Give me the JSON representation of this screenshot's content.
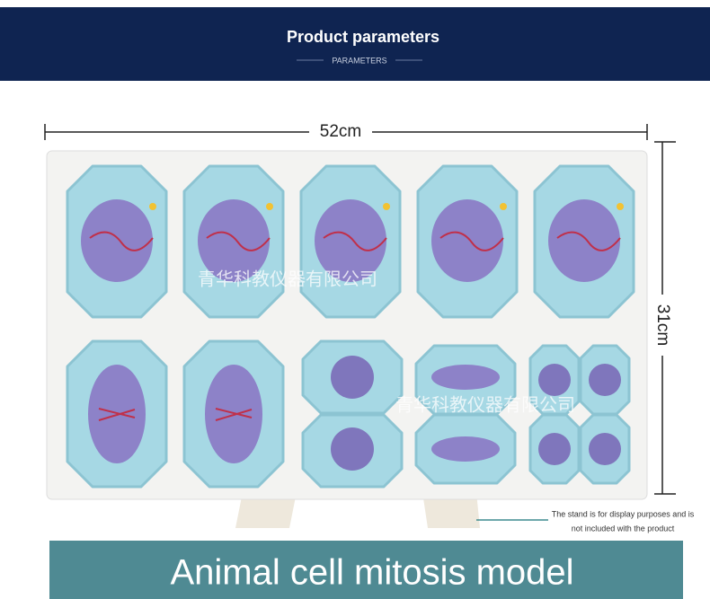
{
  "header": {
    "title": "Product parameters",
    "subtitle": "PARAMETERS"
  },
  "dimensions": {
    "width": "52cm",
    "height": "31cm"
  },
  "watermarks": [
    "青华科教仪器有限公司",
    "青华科教仪器有限公司"
  ],
  "note": {
    "line1": "The stand is for display purposes and is",
    "line2": "not included with the product"
  },
  "footer": {
    "title": "Animal cell mitosis model"
  }
}
